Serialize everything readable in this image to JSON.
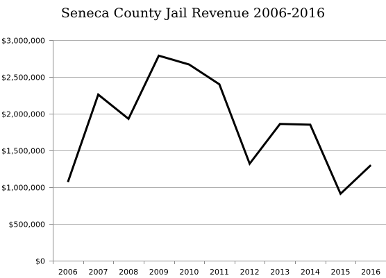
{
  "chart_data": {
    "type": "line",
    "title": "Seneca County Jail Revenue 2006-2016",
    "xlabel": "",
    "ylabel": "",
    "x": [
      "2006",
      "2007",
      "2008",
      "2009",
      "2010",
      "2011",
      "2012",
      "2013",
      "2014",
      "2015",
      "2016"
    ],
    "series": [
      {
        "values": [
          1070000,
          2260000,
          1930000,
          2790000,
          2670000,
          2400000,
          1320000,
          1860000,
          1850000,
          910000,
          1300000
        ]
      }
    ],
    "ylim": [
      0,
      3000000
    ],
    "yticks": [
      0,
      500000,
      1000000,
      1500000,
      2000000,
      2500000,
      3000000
    ],
    "ytick_labels": [
      "$0",
      "$500,000",
      "$1,000,000",
      "$1,500,000",
      "$2,000,000",
      "$2,500,000",
      "$3,000,000"
    ],
    "grid": "horizontal",
    "legend": "none",
    "colors": {
      "line": "#000000",
      "grid": "#b0b0b0",
      "axis": "#8c8c8c",
      "background": "#ffffff"
    }
  }
}
